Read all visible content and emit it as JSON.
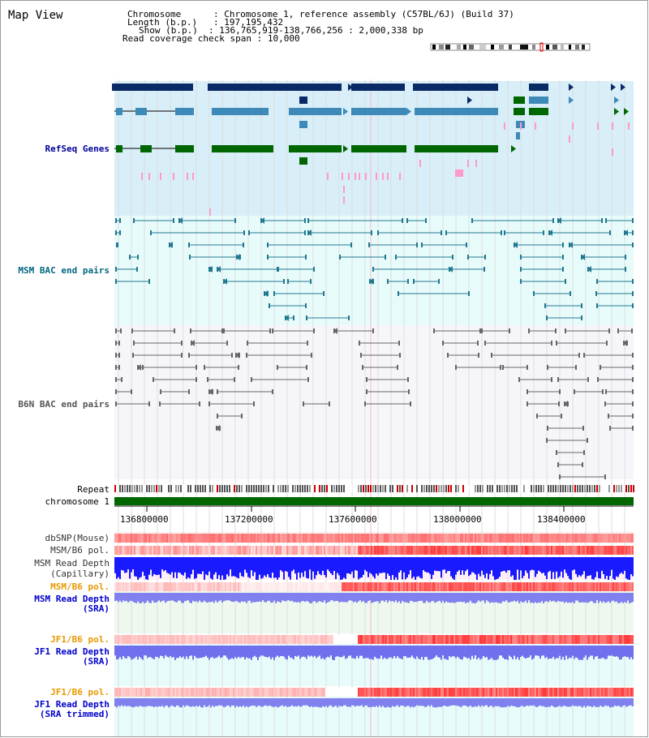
{
  "header": {
    "title": "Map View",
    "chromosome_key": "Chromosome",
    "chromosome_value": "Chromosome 1, reference assembly (C57BL/6J) (Build 37)",
    "length_key": "Length (b.p.)",
    "length_value": "197,195,432",
    "show_key": "Show (b.p.)",
    "show_value": "136,765,919-138,766,256 : 2,000,338 bp",
    "coverage_key": "Read coverage check span",
    "coverage_value": "10,000"
  },
  "tracks": {
    "refseq": "RefSeq Genes",
    "msm_bac": "MSM BAC end pairs",
    "b6n_bac": "B6N BAC end pairs",
    "repeat": "Repeat",
    "chromosome": "chromosome 1",
    "dbsnp": "dbSNP(Mouse)",
    "msm_b6_pol_1": "MSM/B6 pol.",
    "msm_depth_cap_1": "MSM Read Depth",
    "msm_depth_cap_2": "(Capillary)",
    "msm_b6_pol_2": "MSM/B6 pol.",
    "msm_depth_sra_1": "MSM Read Depth",
    "msm_depth_sra_2": "(SRA)",
    "jf1_b6_pol_1": "JF1/B6 pol.",
    "jf1_depth_sra_1": "JF1 Read Depth",
    "jf1_depth_sra_2": "(SRA)",
    "jf1_b6_pol_2": "JF1/B6 pol.",
    "jf1_depth_trim_1": "JF1 Read Depth",
    "jf1_depth_trim_2": "(SRA trimmed)"
  },
  "axis": {
    "ticks": [
      "136800000",
      "137200000",
      "137600000",
      "138000000",
      "138400000"
    ]
  },
  "colors": {
    "refseq_label": "#000099",
    "msm_label": "#006680",
    "b6n_label": "#555555",
    "pol_label": "#e69900",
    "depth_label": "#0000cc",
    "refseq_bg": "#d8eef8",
    "msm_bg": "#e8fbfb",
    "b6n_bg": "#f6f6fa",
    "chrom_bar": "#006600"
  }
}
